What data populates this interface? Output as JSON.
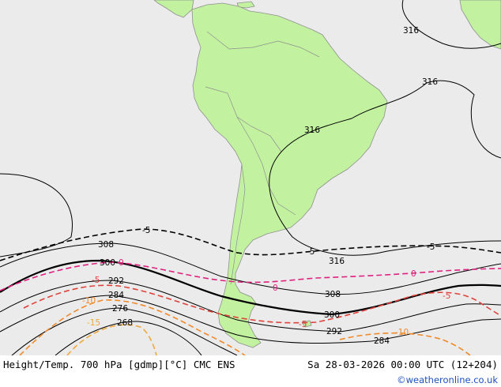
{
  "colors": {
    "ocean": "#ebebeb",
    "land": "#c2f2a0",
    "land_border": "#8f8f8f",
    "height_line": "#000000",
    "temp_pos": "#e0207f",
    "temp_neg5": "#e0423b",
    "temp_neg10": "#f08a2a",
    "temp_neg15": "#f0a73a",
    "credit": "#1f4fbf"
  },
  "height_labels": {
    "h316_a": "316",
    "h316_b": "316",
    "h316_c": "316",
    "h316_d": "316",
    "h308_w": "308",
    "h308_e": "308",
    "h300_w": "300",
    "h300_e": "300",
    "h292_w": "292",
    "h292_e": "292",
    "h284_w": "284",
    "h284_e": "284",
    "h276": "276",
    "h268": "268"
  },
  "temp_labels": {
    "t_minus5_w": "-5",
    "t_minus5_c": "-5",
    "t_minus5_e": "-5",
    "t_zero_w": "0",
    "t_zero_c": "0",
    "t_zero_e": "0",
    "t_minus5r_w": "-5",
    "t_minus5r_c": "-5",
    "t_minus5r_e": "-5",
    "t_minus10_w": "-10",
    "t_minus10_e": "-10",
    "t_minus15": "-15"
  },
  "footer": {
    "title": "Height/Temp. 700 hPa [gdmp][°C] CMC ENS",
    "valid_time": "Sa 28-03-2026 00:00 UTC (12+204)",
    "credit": "©weatheronline.co.uk"
  }
}
